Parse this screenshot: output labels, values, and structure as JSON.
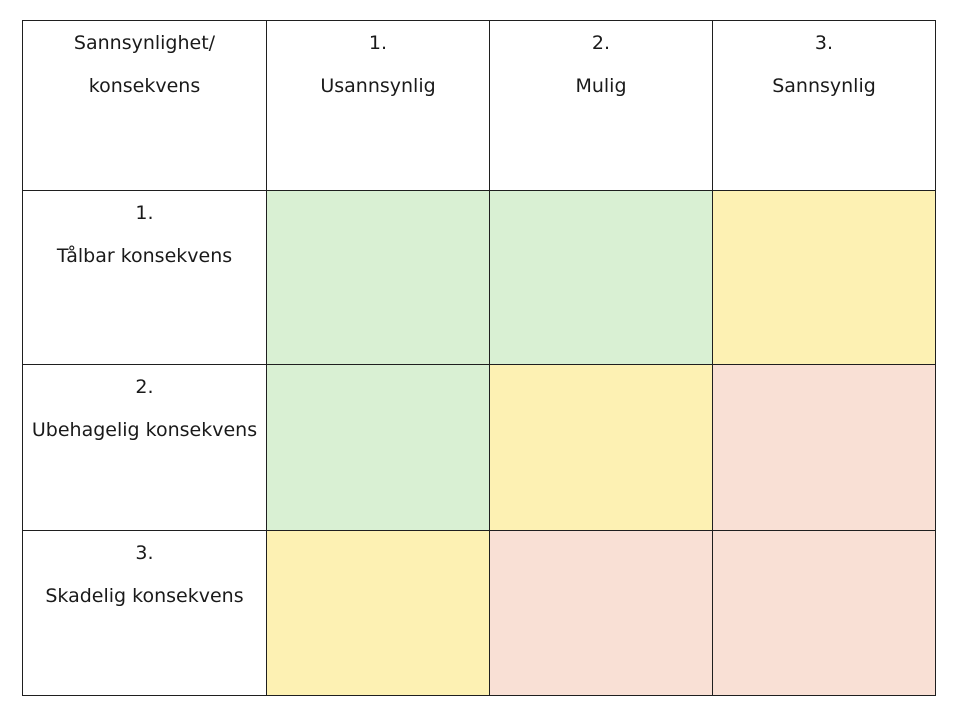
{
  "header": {
    "corner_line1": "Sannsynlighet/",
    "corner_line2": "konsekvens",
    "columns": [
      {
        "number": "1.",
        "label": "Usannsynlig"
      },
      {
        "number": "2.",
        "label": "Mulig"
      },
      {
        "number": "3.",
        "label": "Sannsynlig"
      }
    ]
  },
  "rows": [
    {
      "number": "1.",
      "label": "Tålbar konsekvens",
      "cells": [
        "green",
        "green",
        "yellow"
      ]
    },
    {
      "number": "2.",
      "label": "Ubehagelig konsekvens",
      "cells": [
        "green",
        "yellow",
        "red"
      ]
    },
    {
      "number": "3.",
      "label": "Skadelig konsekvens",
      "cells": [
        "yellow",
        "red",
        "red"
      ]
    }
  ],
  "colors": {
    "green": "#d9f0d3",
    "yellow": "#fdf1b3",
    "red": "#f9e0d5"
  }
}
